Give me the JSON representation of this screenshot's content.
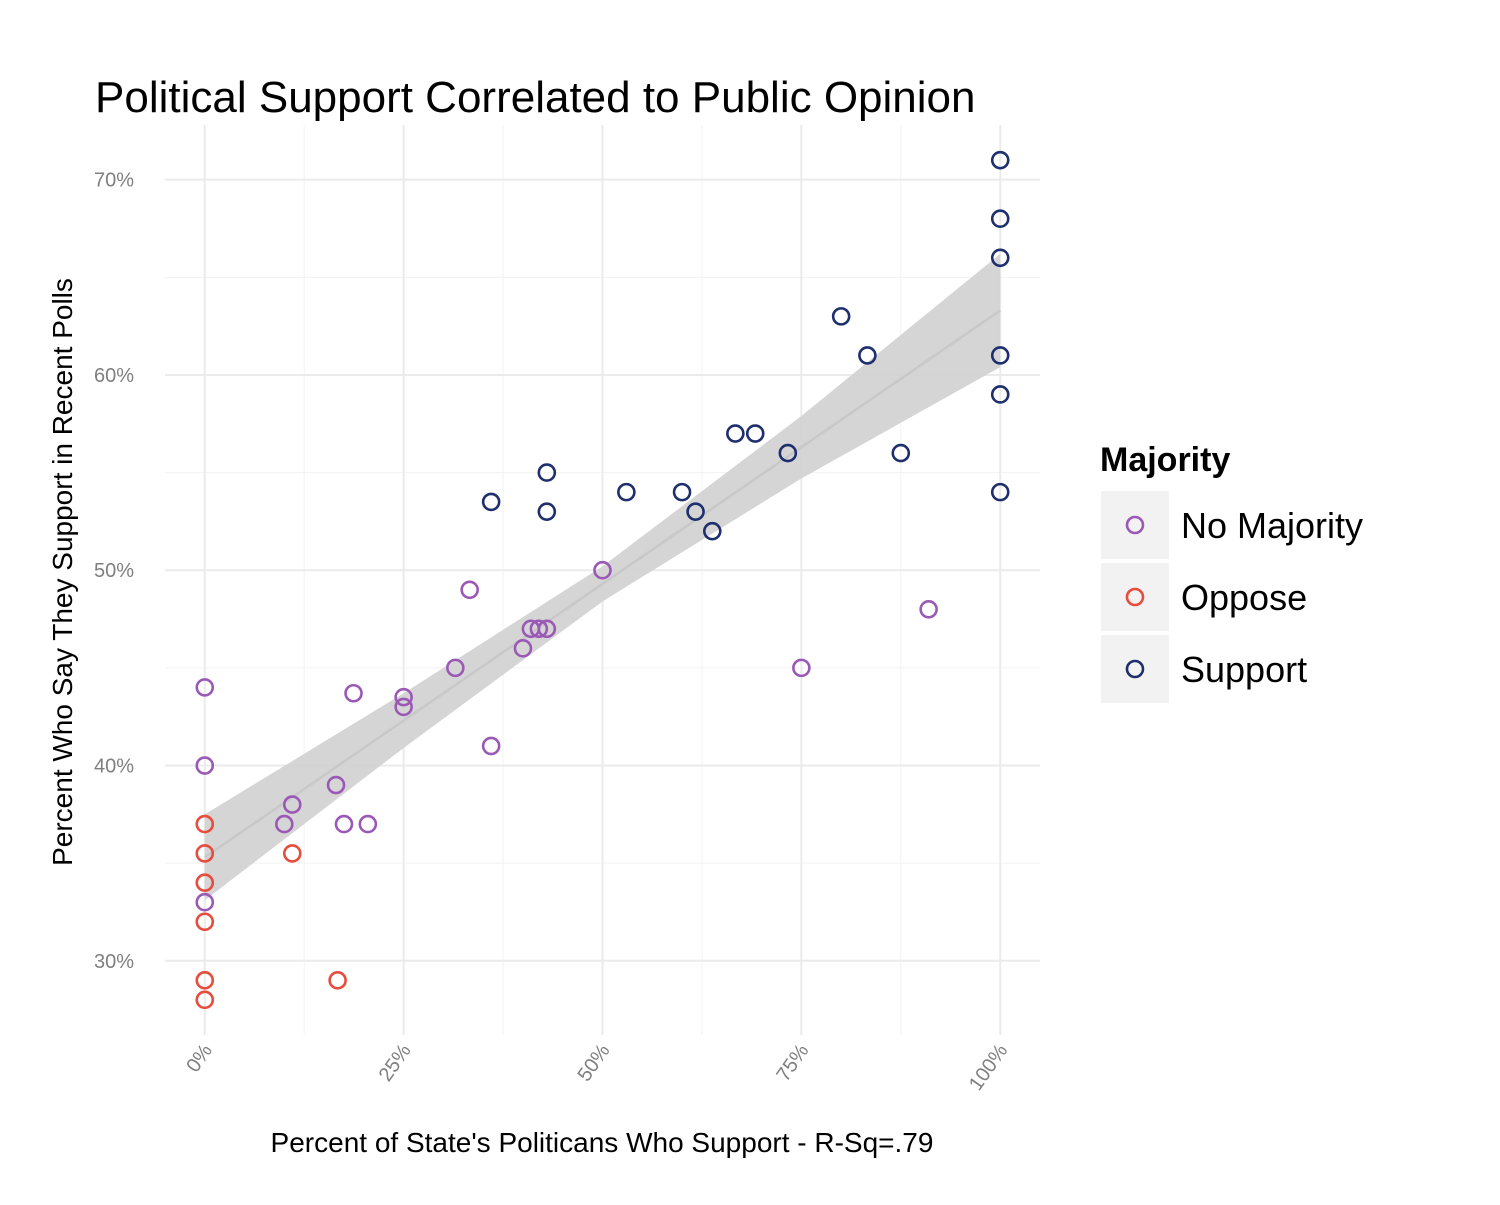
{
  "chart_data": {
    "type": "scatter",
    "title": "Political Support Correlated to Public Opinion",
    "xlabel": "Percent of State's Politicans Who Support - R-Sq=.79",
    "ylabel": "Percent Who Say They Support in Recent Polls",
    "xlim": [
      -0.05,
      1.05
    ],
    "ylim": [
      0.262,
      0.728
    ],
    "x_ticks": [
      0,
      0.25,
      0.5,
      0.75,
      1.0
    ],
    "x_tick_labels": [
      "0%",
      "25%",
      "50%",
      "75%",
      "100%"
    ],
    "y_ticks": [
      0.3,
      0.4,
      0.5,
      0.6,
      0.7
    ],
    "y_tick_labels": [
      "30%",
      "40%",
      "50%",
      "60%",
      "70%"
    ],
    "grid": true,
    "legend": {
      "title": "Majority",
      "position": "right",
      "entries": [
        {
          "label": "No Majority",
          "color": "#9b59b6"
        },
        {
          "label": "Oppose",
          "color": "#e74c3c"
        },
        {
          "label": "Support",
          "color": "#1f2f6e"
        }
      ]
    },
    "trend": {
      "type": "linear fit with confidence band",
      "line_color": "#c8c8c8",
      "band_color": "#d3d3d3",
      "x": [
        0,
        0.25,
        0.5,
        0.75,
        1.0
      ],
      "y": [
        0.353,
        0.423,
        0.493,
        0.563,
        0.633
      ],
      "band_low": [
        0.331,
        0.409,
        0.484,
        0.547,
        0.604
      ],
      "band_high": [
        0.375,
        0.437,
        0.502,
        0.579,
        0.662
      ]
    },
    "series": [
      {
        "name": "No Majority",
        "color": "#9b59b6",
        "points": [
          [
            0,
            0.44
          ],
          [
            0,
            0.4
          ],
          [
            0,
            0.33
          ],
          [
            0.1,
            0.37
          ],
          [
            0.11,
            0.38
          ],
          [
            0.165,
            0.39
          ],
          [
            0.175,
            0.37
          ],
          [
            0.187,
            0.437
          ],
          [
            0.205,
            0.37
          ],
          [
            0.25,
            0.435
          ],
          [
            0.25,
            0.43
          ],
          [
            0.315,
            0.45
          ],
          [
            0.333,
            0.49
          ],
          [
            0.36,
            0.41
          ],
          [
            0.4,
            0.46
          ],
          [
            0.41,
            0.47
          ],
          [
            0.42,
            0.47
          ],
          [
            0.43,
            0.47
          ],
          [
            0.5,
            0.5
          ],
          [
            0.75,
            0.45
          ],
          [
            0.91,
            0.48
          ]
        ]
      },
      {
        "name": "Oppose",
        "color": "#e74c3c",
        "points": [
          [
            0,
            0.37
          ],
          [
            0,
            0.355
          ],
          [
            0,
            0.34
          ],
          [
            0,
            0.32
          ],
          [
            0,
            0.29
          ],
          [
            0,
            0.28
          ],
          [
            0.11,
            0.355
          ],
          [
            0.167,
            0.29
          ]
        ]
      },
      {
        "name": "Support",
        "color": "#1f2f6e",
        "points": [
          [
            0.36,
            0.535
          ],
          [
            0.43,
            0.55
          ],
          [
            0.43,
            0.53
          ],
          [
            0.53,
            0.54
          ],
          [
            0.6,
            0.54
          ],
          [
            0.617,
            0.53
          ],
          [
            0.638,
            0.52
          ],
          [
            0.667,
            0.57
          ],
          [
            0.692,
            0.57
          ],
          [
            0.733,
            0.56
          ],
          [
            0.8,
            0.63
          ],
          [
            0.833,
            0.61
          ],
          [
            0.875,
            0.56
          ],
          [
            1.0,
            0.71
          ],
          [
            1.0,
            0.68
          ],
          [
            1.0,
            0.66
          ],
          [
            1.0,
            0.61
          ],
          [
            1.0,
            0.59
          ],
          [
            1.0,
            0.54
          ]
        ]
      }
    ]
  }
}
